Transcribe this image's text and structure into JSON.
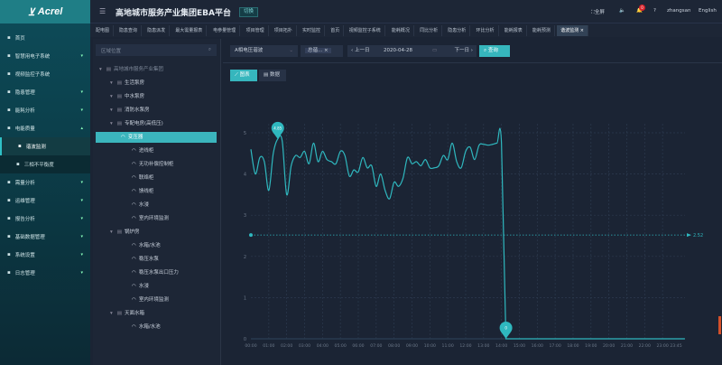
{
  "brand": {
    "logo": "Acrel"
  },
  "header": {
    "title": "高地城市服务产业集团EBA平台",
    "switch_label": "切换",
    "fullscreen": "全屏",
    "notif_count": "0",
    "user": "zhangsan",
    "language": "English"
  },
  "sidebar": {
    "items": [
      {
        "label": "首页",
        "icon": "home-icon"
      },
      {
        "label": "智慧用电子系统",
        "icon": "chart-icon",
        "chevron": "v"
      },
      {
        "label": "视频监控子系统",
        "icon": "video-icon"
      },
      {
        "label": "隐患管理",
        "icon": "warning-icon",
        "chevron": "v"
      },
      {
        "label": "能耗分析",
        "icon": "energy-icon",
        "chevron": "v"
      },
      {
        "label": "电能质量",
        "icon": "calendar-icon",
        "chevron": "^"
      },
      {
        "label": "谐波监测",
        "icon": "line-chart-icon",
        "sub": true,
        "active": true
      },
      {
        "label": "三相不平衡度",
        "icon": "bar-chart-icon",
        "sub": true
      },
      {
        "label": "需量分析",
        "icon": "list-icon",
        "chevron": "v"
      },
      {
        "label": "运维管理",
        "icon": "toolbox-icon",
        "chevron": "v"
      },
      {
        "label": "报告分析",
        "icon": "printer-icon",
        "chevron": "v"
      },
      {
        "label": "基础数据管理",
        "icon": "database-icon",
        "chevron": "v"
      },
      {
        "label": "系统设置",
        "icon": "gear-icon",
        "chevron": "v"
      },
      {
        "label": "日志管理",
        "icon": "log-icon",
        "chevron": "v"
      }
    ]
  },
  "tabs": [
    "配电图",
    "隐患查询",
    "隐患派发",
    "最大需量报表",
    "电参量管理",
    "项目管理",
    "项目拓扑",
    "实时监控",
    "首页",
    "视频监控子系统",
    "能耗概况",
    "同比分析",
    "隐患分析",
    "环比分析",
    "能耗报表",
    "能耗预测",
    "谐波监测"
  ],
  "active_tab": "谐波监测",
  "tree": {
    "search_placeholder": "区域位置",
    "nodes": [
      {
        "label": "高地城市服务产业集团",
        "level": 0,
        "type": "folder"
      },
      {
        "label": "生活泵房",
        "level": 1,
        "type": "folder"
      },
      {
        "label": "中水泵房",
        "level": 1,
        "type": "folder"
      },
      {
        "label": "消防水泵房",
        "level": 1,
        "type": "folder"
      },
      {
        "label": "专配电房(高低压)",
        "level": 1,
        "type": "folder"
      },
      {
        "label": "变压器",
        "level": 2,
        "type": "device",
        "selected": true
      },
      {
        "label": "进线柜",
        "level": 2,
        "type": "device"
      },
      {
        "label": "无功补偿控制柜",
        "level": 2,
        "type": "device"
      },
      {
        "label": "联络柜",
        "level": 2,
        "type": "device"
      },
      {
        "label": "馈线柜",
        "level": 2,
        "type": "device"
      },
      {
        "label": "水浸",
        "level": 2,
        "type": "device"
      },
      {
        "label": "室内环境监测",
        "level": 2,
        "type": "device"
      },
      {
        "label": "锅炉房",
        "level": 1,
        "type": "folder"
      },
      {
        "label": "水箱/水池",
        "level": 2,
        "type": "device"
      },
      {
        "label": "稳压水泵",
        "level": 2,
        "type": "device"
      },
      {
        "label": "稳压水泵出口压力",
        "level": 2,
        "type": "device"
      },
      {
        "label": "水浸",
        "level": 2,
        "type": "device"
      },
      {
        "label": "室内环境监测",
        "level": 2,
        "type": "device"
      },
      {
        "label": "天面水箱",
        "level": 1,
        "type": "folder"
      },
      {
        "label": "水箱/水池",
        "level": 2,
        "type": "device"
      }
    ]
  },
  "filters": {
    "parameter": "A相电压谐波",
    "tag": "总谐...",
    "prev_day": "上一日",
    "date": "2020-04-28",
    "next_day": "下一日",
    "query": "查询",
    "view_chart": "图表",
    "view_data": "数据"
  },
  "chart_data": {
    "type": "line",
    "ylim": [
      0,
      5
    ],
    "yticks": [
      "0",
      "1",
      "2",
      "3",
      "4",
      "5"
    ],
    "xticks": [
      "00:00",
      "01:00",
      "02:00",
      "03:00",
      "04:00",
      "05:00",
      "06:00",
      "07:00",
      "08:00",
      "09:00",
      "10:00",
      "11:00",
      "12:00",
      "13:00",
      "14:00",
      "15:00",
      "16:00",
      "17:00",
      "18:00",
      "19:00",
      "20:00",
      "21:00",
      "22:00",
      "23:00",
      "23:45"
    ],
    "x_interval": "15min",
    "values": [
      4.6,
      4.0,
      4.4,
      4.3,
      3.6,
      4.5,
      4.85,
      4.8,
      3.5,
      4.2,
      4.45,
      4.4,
      4.55,
      4.25,
      4.75,
      4.3,
      4.55,
      4.35,
      4.3,
      4.25,
      4.55,
      4.45,
      3.95,
      4.1,
      4.05,
      4.4,
      4.15,
      4.2,
      3.7,
      4.0,
      3.6,
      3.4,
      3.8,
      3.7,
      3.9,
      4.4,
      4.25,
      4.3,
      4.2,
      4.35,
      4.15,
      4.15,
      4.2,
      4.45,
      4.35,
      4.75,
      4.3,
      4.15,
      4.55,
      4.65,
      4.35,
      4.7,
      4.72,
      4.7,
      4.72,
      4.75,
      4.75,
      0,
      0,
      0,
      0,
      0,
      0,
      0,
      0,
      0,
      0,
      0,
      0,
      0,
      0,
      0,
      0,
      0,
      0,
      0,
      0,
      0,
      0,
      0,
      0,
      0,
      0,
      0,
      0,
      0,
      0,
      0,
      0,
      0,
      0,
      0,
      0,
      0,
      0,
      0,
      0,
      0
    ],
    "max_label": "4.85",
    "max_index": 6,
    "min_label": "0",
    "min_index": 57,
    "average_line": 2.52,
    "average_label": "2.52",
    "grid": true,
    "color": "#2fb8bf"
  }
}
